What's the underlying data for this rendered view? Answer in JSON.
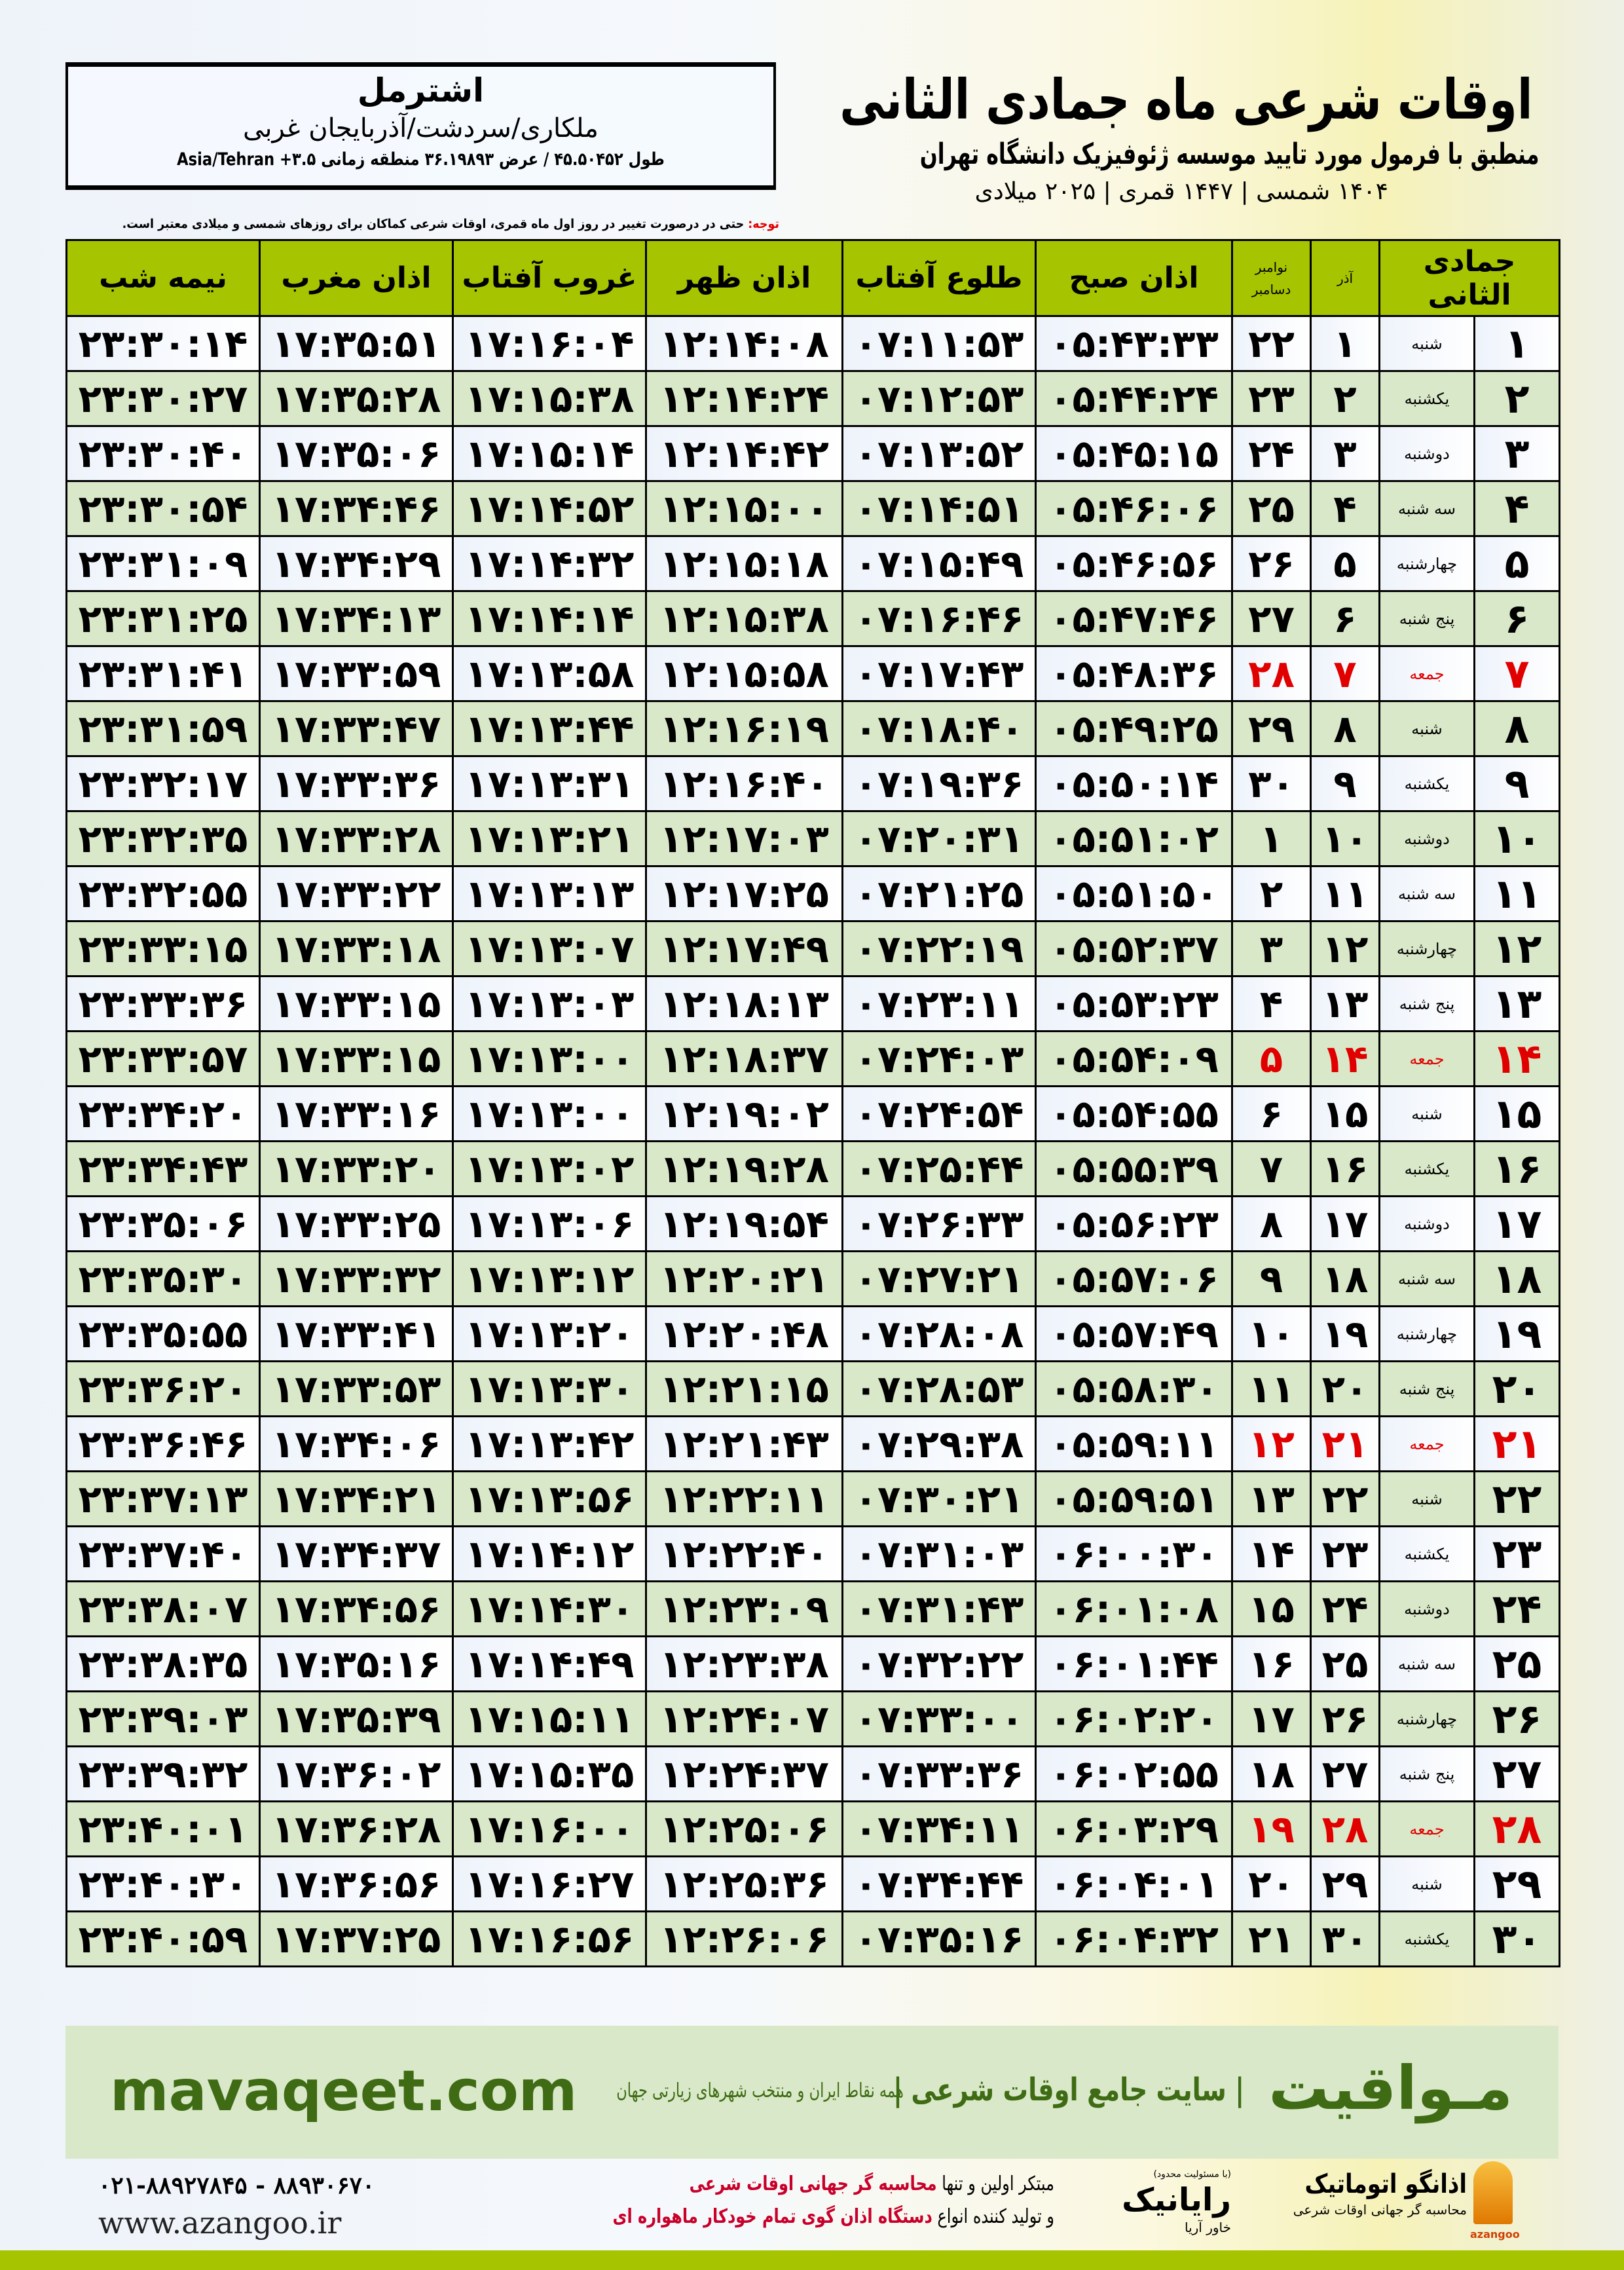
{
  "title": {
    "main": "اوقات شرعی ماه جمادی الثانی",
    "subtitle": "منطبق با فرمول مورد تایید موسسه ژئوفیزیک دانشگاه تهران",
    "date_line": "۱۴۰۴ شمسی | ۱۴۴۷ قمری | ۲۰۲۵ میلادی"
  },
  "location": {
    "city": "اشترمل",
    "province": "ملکاری/سردشت/آذربایجان غربی",
    "coords": "طول ۴۵.۵۰۴۵۲ / عرض ۳۶.۱۹۸۹۳ منطقه زمانی ۳.۵+ Asia/Tehran"
  },
  "note": {
    "label": "توجه:",
    "text": " حتی در درصورت تغییر در روز اول ماه قمری، اوقات شرعی کماکان برای روزهای شمسی و میلادی معتبر است."
  },
  "colors": {
    "header_green": "#a6c400",
    "row_green": "#d9e8c8",
    "holiday_red": "#e00000",
    "brand_green": "#3e6b14"
  },
  "table": {
    "headers": {
      "month": "جمادی الثانی",
      "azar": "آذر",
      "nov": "نوامبر",
      "dec": "دسامبر",
      "fajr": "اذان صبح",
      "sunrise": "طلوع آفتاب",
      "dhuhr": "اذان ظهر",
      "sunset": "غروب آفتاب",
      "maghrib": "اذان مغرب",
      "midnight": "نیمه شب"
    },
    "rows": [
      [
        "۱",
        "شنبه",
        "۱",
        "۲۲",
        "۰۵:۴۳:۳۳",
        "۰۷:۱۱:۵۳",
        "۱۲:۱۴:۰۸",
        "۱۷:۱۶:۰۴",
        "۱۷:۳۵:۵۱",
        "۲۳:۳۰:۱۴",
        false
      ],
      [
        "۲",
        "یکشنبه",
        "۲",
        "۲۳",
        "۰۵:۴۴:۲۴",
        "۰۷:۱۲:۵۳",
        "۱۲:۱۴:۲۴",
        "۱۷:۱۵:۳۸",
        "۱۷:۳۵:۲۸",
        "۲۳:۳۰:۲۷",
        false
      ],
      [
        "۳",
        "دوشنبه",
        "۳",
        "۲۴",
        "۰۵:۴۵:۱۵",
        "۰۷:۱۳:۵۲",
        "۱۲:۱۴:۴۲",
        "۱۷:۱۵:۱۴",
        "۱۷:۳۵:۰۶",
        "۲۳:۳۰:۴۰",
        false
      ],
      [
        "۴",
        "سه شنبه",
        "۴",
        "۲۵",
        "۰۵:۴۶:۰۶",
        "۰۷:۱۴:۵۱",
        "۱۲:۱۵:۰۰",
        "۱۷:۱۴:۵۲",
        "۱۷:۳۴:۴۶",
        "۲۳:۳۰:۵۴",
        false
      ],
      [
        "۵",
        "چهارشنبه",
        "۵",
        "۲۶",
        "۰۵:۴۶:۵۶",
        "۰۷:۱۵:۴۹",
        "۱۲:۱۵:۱۸",
        "۱۷:۱۴:۳۲",
        "۱۷:۳۴:۲۹",
        "۲۳:۳۱:۰۹",
        false
      ],
      [
        "۶",
        "پنج شنبه",
        "۶",
        "۲۷",
        "۰۵:۴۷:۴۶",
        "۰۷:۱۶:۴۶",
        "۱۲:۱۵:۳۸",
        "۱۷:۱۴:۱۴",
        "۱۷:۳۴:۱۳",
        "۲۳:۳۱:۲۵",
        false
      ],
      [
        "۷",
        "جمعه",
        "۷",
        "۲۸",
        "۰۵:۴۸:۳۶",
        "۰۷:۱۷:۴۳",
        "۱۲:۱۵:۵۸",
        "۱۷:۱۳:۵۸",
        "۱۷:۳۳:۵۹",
        "۲۳:۳۱:۴۱",
        true
      ],
      [
        "۸",
        "شنبه",
        "۸",
        "۲۹",
        "۰۵:۴۹:۲۵",
        "۰۷:۱۸:۴۰",
        "۱۲:۱۶:۱۹",
        "۱۷:۱۳:۴۴",
        "۱۷:۳۳:۴۷",
        "۲۳:۳۱:۵۹",
        false
      ],
      [
        "۹",
        "یکشنبه",
        "۹",
        "۳۰",
        "۰۵:۵۰:۱۴",
        "۰۷:۱۹:۳۶",
        "۱۲:۱۶:۴۰",
        "۱۷:۱۳:۳۱",
        "۱۷:۳۳:۳۶",
        "۲۳:۳۲:۱۷",
        false
      ],
      [
        "۱۰",
        "دوشنبه",
        "۱۰",
        "۱",
        "۰۵:۵۱:۰۲",
        "۰۷:۲۰:۳۱",
        "۱۲:۱۷:۰۳",
        "۱۷:۱۳:۲۱",
        "۱۷:۳۳:۲۸",
        "۲۳:۳۲:۳۵",
        false
      ],
      [
        "۱۱",
        "سه شنبه",
        "۱۱",
        "۲",
        "۰۵:۵۱:۵۰",
        "۰۷:۲۱:۲۵",
        "۱۲:۱۷:۲۵",
        "۱۷:۱۳:۱۳",
        "۱۷:۳۳:۲۲",
        "۲۳:۳۲:۵۵",
        false
      ],
      [
        "۱۲",
        "چهارشنبه",
        "۱۲",
        "۳",
        "۰۵:۵۲:۳۷",
        "۰۷:۲۲:۱۹",
        "۱۲:۱۷:۴۹",
        "۱۷:۱۳:۰۷",
        "۱۷:۳۳:۱۸",
        "۲۳:۳۳:۱۵",
        false
      ],
      [
        "۱۳",
        "پنج شنبه",
        "۱۳",
        "۴",
        "۰۵:۵۳:۲۳",
        "۰۷:۲۳:۱۱",
        "۱۲:۱۸:۱۳",
        "۱۷:۱۳:۰۳",
        "۱۷:۳۳:۱۵",
        "۲۳:۳۳:۳۶",
        false
      ],
      [
        "۱۴",
        "جمعه",
        "۱۴",
        "۵",
        "۰۵:۵۴:۰۹",
        "۰۷:۲۴:۰۳",
        "۱۲:۱۸:۳۷",
        "۱۷:۱۳:۰۰",
        "۱۷:۳۳:۱۵",
        "۲۳:۳۳:۵۷",
        true
      ],
      [
        "۱۵",
        "شنبه",
        "۱۵",
        "۶",
        "۰۵:۵۴:۵۵",
        "۰۷:۲۴:۵۴",
        "۱۲:۱۹:۰۲",
        "۱۷:۱۳:۰۰",
        "۱۷:۳۳:۱۶",
        "۲۳:۳۴:۲۰",
        false
      ],
      [
        "۱۶",
        "یکشنبه",
        "۱۶",
        "۷",
        "۰۵:۵۵:۳۹",
        "۰۷:۲۵:۴۴",
        "۱۲:۱۹:۲۸",
        "۱۷:۱۳:۰۲",
        "۱۷:۳۳:۲۰",
        "۲۳:۳۴:۴۳",
        false
      ],
      [
        "۱۷",
        "دوشنبه",
        "۱۷",
        "۸",
        "۰۵:۵۶:۲۳",
        "۰۷:۲۶:۳۳",
        "۱۲:۱۹:۵۴",
        "۱۷:۱۳:۰۶",
        "۱۷:۳۳:۲۵",
        "۲۳:۳۵:۰۶",
        false
      ],
      [
        "۱۸",
        "سه شنبه",
        "۱۸",
        "۹",
        "۰۵:۵۷:۰۶",
        "۰۷:۲۷:۲۱",
        "۱۲:۲۰:۲۱",
        "۱۷:۱۳:۱۲",
        "۱۷:۳۳:۳۲",
        "۲۳:۳۵:۳۰",
        false
      ],
      [
        "۱۹",
        "چهارشنبه",
        "۱۹",
        "۱۰",
        "۰۵:۵۷:۴۹",
        "۰۷:۲۸:۰۸",
        "۱۲:۲۰:۴۸",
        "۱۷:۱۳:۲۰",
        "۱۷:۳۳:۴۱",
        "۲۳:۳۵:۵۵",
        false
      ],
      [
        "۲۰",
        "پنج شنبه",
        "۲۰",
        "۱۱",
        "۰۵:۵۸:۳۰",
        "۰۷:۲۸:۵۳",
        "۱۲:۲۱:۱۵",
        "۱۷:۱۳:۳۰",
        "۱۷:۳۳:۵۳",
        "۲۳:۳۶:۲۰",
        false
      ],
      [
        "۲۱",
        "جمعه",
        "۲۱",
        "۱۲",
        "۰۵:۵۹:۱۱",
        "۰۷:۲۹:۳۸",
        "۱۲:۲۱:۴۳",
        "۱۷:۱۳:۴۲",
        "۱۷:۳۴:۰۶",
        "۲۳:۳۶:۴۶",
        true
      ],
      [
        "۲۲",
        "شنبه",
        "۲۲",
        "۱۳",
        "۰۵:۵۹:۵۱",
        "۰۷:۳۰:۲۱",
        "۱۲:۲۲:۱۱",
        "۱۷:۱۳:۵۶",
        "۱۷:۳۴:۲۱",
        "۲۳:۳۷:۱۳",
        false
      ],
      [
        "۲۳",
        "یکشنبه",
        "۲۳",
        "۱۴",
        "۰۶:۰۰:۳۰",
        "۰۷:۳۱:۰۳",
        "۱۲:۲۲:۴۰",
        "۱۷:۱۴:۱۲",
        "۱۷:۳۴:۳۷",
        "۲۳:۳۷:۴۰",
        false
      ],
      [
        "۲۴",
        "دوشنبه",
        "۲۴",
        "۱۵",
        "۰۶:۰۱:۰۸",
        "۰۷:۳۱:۴۳",
        "۱۲:۲۳:۰۹",
        "۱۷:۱۴:۳۰",
        "۱۷:۳۴:۵۶",
        "۲۳:۳۸:۰۷",
        false
      ],
      [
        "۲۵",
        "سه شنبه",
        "۲۵",
        "۱۶",
        "۰۶:۰۱:۴۴",
        "۰۷:۳۲:۲۲",
        "۱۲:۲۳:۳۸",
        "۱۷:۱۴:۴۹",
        "۱۷:۳۵:۱۶",
        "۲۳:۳۸:۳۵",
        false
      ],
      [
        "۲۶",
        "چهارشنبه",
        "۲۶",
        "۱۷",
        "۰۶:۰۲:۲۰",
        "۰۷:۳۳:۰۰",
        "۱۲:۲۴:۰۷",
        "۱۷:۱۵:۱۱",
        "۱۷:۳۵:۳۹",
        "۲۳:۳۹:۰۳",
        false
      ],
      [
        "۲۷",
        "پنج شنبه",
        "۲۷",
        "۱۸",
        "۰۶:۰۲:۵۵",
        "۰۷:۳۳:۳۶",
        "۱۲:۲۴:۳۷",
        "۱۷:۱۵:۳۵",
        "۱۷:۳۶:۰۲",
        "۲۳:۳۹:۳۲",
        false
      ],
      [
        "۲۸",
        "جمعه",
        "۲۸",
        "۱۹",
        "۰۶:۰۳:۲۹",
        "۰۷:۳۴:۱۱",
        "۱۲:۲۵:۰۶",
        "۱۷:۱۶:۰۰",
        "۱۷:۳۶:۲۸",
        "۲۳:۴۰:۰۱",
        true
      ],
      [
        "۲۹",
        "شنبه",
        "۲۹",
        "۲۰",
        "۰۶:۰۴:۰۱",
        "۰۷:۳۴:۴۴",
        "۱۲:۲۵:۳۶",
        "۱۷:۱۶:۲۷",
        "۱۷:۳۶:۵۶",
        "۲۳:۴۰:۳۰",
        false
      ],
      [
        "۳۰",
        "یکشنبه",
        "۳۰",
        "۲۱",
        "۰۶:۰۴:۳۲",
        "۰۷:۳۵:۱۶",
        "۱۲:۲۶:۰۶",
        "۱۷:۱۶:۵۶",
        "۱۷:۳۷:۲۵",
        "۲۳:۴۰:۵۹",
        false
      ]
    ]
  },
  "footer": {
    "brand": "مـواقیت",
    "tagline": "| سایت جامع اوقات شرعی |",
    "tagline2": "همه نقاط ایران و منتخب شهرهای زیارتی جهان",
    "site": "mavaqeet.com"
  },
  "sponsors": {
    "azangoo": {
      "name": "اذانگو اتوماتیک",
      "sub": "محاسبه گر جهانی اوقات شرعی",
      "en": "azangoo"
    },
    "rayanik": {
      "small": "(با مسئولیت محدود)",
      "name": "رایانیک",
      "sub": "خاور آریا"
    },
    "promo": {
      "l1a": "مبتکر اولین و تنها ",
      "l1b": "محاسبه گر جهانی اوقات شرعی",
      "l2a": "و تولید کننده انواع ",
      "l2b": "دستگاه اذان گوی تمام خودکار ماهواره ای"
    },
    "phone": "۰۲۱-۸۸۹۲۷۸۴۵ - ۸۸۹۳۰۶۷۰",
    "website": "www.azangoo.ir"
  }
}
